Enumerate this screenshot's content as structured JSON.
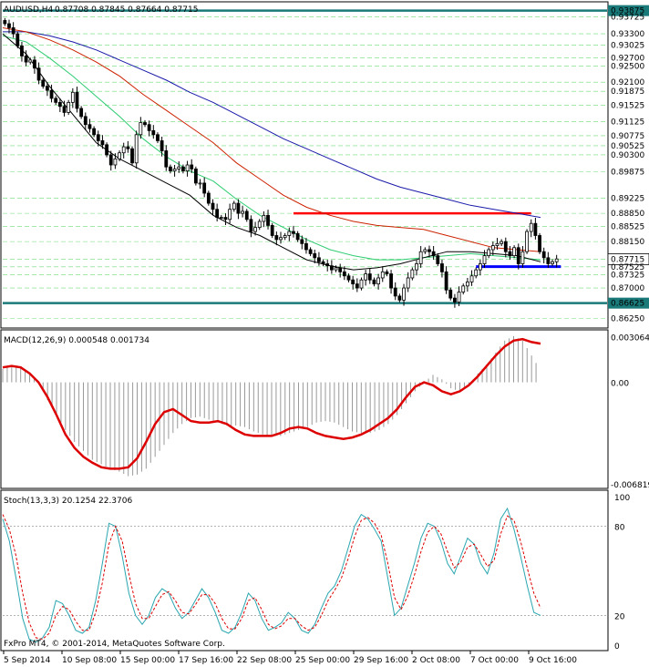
{
  "window": {
    "title": "AUDUSD,H4",
    "ohlc_text": "0.87708 0.87845 0.87664 0.87715",
    "watermark": "FxPro MT4, © 2001-2014, MetaQuotes Software Corp."
  },
  "colors": {
    "background": "#ffffff",
    "candle": "#000000",
    "grid": "#2ecc40",
    "ma_fast": "#000000",
    "ma_green": "#2ecc71",
    "ma_red": "#cc2200",
    "ma_blue": "#1a1aaa",
    "support_resistance": "#1a7a7a",
    "red_level": "#ff0000",
    "blue_level": "#0000ff",
    "macd_hist": "#999999",
    "macd_signal": "#dd0000",
    "stoch_main": "#2aa6b0",
    "stoch_signal": "#dd0000"
  },
  "chart_data": [
    {
      "type": "candlestick",
      "symbol": "AUDUSD",
      "timeframe": "H4",
      "ylim": [
        0.8603,
        0.9407
      ],
      "price_labels": [
        "0.93875",
        "0.93725",
        "0.93300",
        "0.93025",
        "0.92700",
        "0.92500",
        "0.92100",
        "0.91875",
        "0.91525",
        "0.91125",
        "0.90775",
        "0.90525",
        "0.90300",
        "0.89875",
        "0.89225",
        "0.88850",
        "0.88525",
        "0.88150",
        "0.87715",
        "0.87525",
        "0.87325",
        "0.87000",
        "0.86625",
        "0.86250"
      ],
      "current_price": "0.87715",
      "horizontal_levels": [
        {
          "price": 0.93875,
          "style": "teal"
        },
        {
          "price": 0.86625,
          "style": "teal"
        },
        {
          "price": 0.8885,
          "style": "red",
          "from_index": 68,
          "to_index": 124
        },
        {
          "price": 0.8753,
          "style": "blue",
          "from_index": 111,
          "to_index": 131
        }
      ],
      "x_labels": [
        "5 Sep 2014",
        "10 Sep 08:00",
        "15 Sep 00:00",
        "17 Sep 16:00",
        "22 Sep 08:00",
        "25 Sep 00:00",
        "29 Sep 16:00",
        "2 Oct 08:00",
        "7 Oct 00:00",
        "9 Oct 16:00"
      ],
      "close": [
        0.9355,
        0.9345,
        0.933,
        0.93,
        0.9275,
        0.926,
        0.9265,
        0.9245,
        0.9215,
        0.92,
        0.919,
        0.917,
        0.916,
        0.915,
        0.9135,
        0.916,
        0.9185,
        0.9145,
        0.9125,
        0.9105,
        0.9095,
        0.908,
        0.9065,
        0.9055,
        0.903,
        0.9005,
        0.902,
        0.9035,
        0.905,
        0.9045,
        0.901,
        0.908,
        0.911,
        0.9105,
        0.909,
        0.908,
        0.9065,
        0.904,
        0.9,
        0.899,
        0.8995,
        0.9,
        0.899,
        0.9005,
        0.8995,
        0.896,
        0.896,
        0.8935,
        0.891,
        0.8895,
        0.8875,
        0.8875,
        0.887,
        0.8895,
        0.891,
        0.8885,
        0.889,
        0.887,
        0.884,
        0.885,
        0.8865,
        0.888,
        0.8855,
        0.883,
        0.882,
        0.8825,
        0.883,
        0.884,
        0.8835,
        0.882,
        0.881,
        0.8795,
        0.8785,
        0.8775,
        0.8765,
        0.876,
        0.8755,
        0.8745,
        0.875,
        0.874,
        0.873,
        0.872,
        0.871,
        0.87,
        0.872,
        0.8735,
        0.872,
        0.871,
        0.8725,
        0.874,
        0.8735,
        0.87,
        0.868,
        0.867,
        0.87,
        0.8725,
        0.8745,
        0.876,
        0.879,
        0.8795,
        0.879,
        0.878,
        0.876,
        0.874,
        0.8695,
        0.8675,
        0.8665,
        0.869,
        0.8705,
        0.8715,
        0.873,
        0.8745,
        0.876,
        0.878,
        0.8795,
        0.8805,
        0.881,
        0.8815,
        0.879,
        0.878,
        0.88,
        0.876,
        0.879,
        0.884,
        0.886,
        0.883,
        0.879,
        0.8775,
        0.876,
        0.8765,
        0.8772
      ],
      "ma_fast": {
        "start": 0,
        "values": [
          0.933,
          0.928,
          0.92,
          0.913,
          0.906,
          0.902,
          0.899,
          0.896,
          0.893,
          0.888,
          0.885,
          0.883,
          0.88,
          0.877,
          0.8755,
          0.8745,
          0.875,
          0.876,
          0.8775,
          0.879,
          0.879,
          0.8785,
          0.878,
          0.8765
        ]
      },
      "ma_green": {
        "start": 0,
        "values": [
          0.9325,
          0.931,
          0.927,
          0.9225,
          0.9175,
          0.9125,
          0.907,
          0.9025,
          0.899,
          0.8965,
          0.892,
          0.888,
          0.885,
          0.882,
          0.8795,
          0.878,
          0.877,
          0.877,
          0.8775,
          0.878,
          0.8785,
          0.878,
          0.8775,
          0.877
        ]
      },
      "ma_red": {
        "start": 0,
        "values": [
          0.9345,
          0.9335,
          0.9315,
          0.929,
          0.926,
          0.9225,
          0.918,
          0.914,
          0.91,
          0.906,
          0.901,
          0.897,
          0.893,
          0.89,
          0.888,
          0.8865,
          0.8855,
          0.885,
          0.8845,
          0.883,
          0.8815,
          0.88,
          0.8795,
          0.879
        ]
      },
      "ma_blue": {
        "start": 0,
        "values": [
          0.9335,
          0.9335,
          0.9325,
          0.931,
          0.929,
          0.9265,
          0.924,
          0.9215,
          0.9185,
          0.916,
          0.913,
          0.91,
          0.907,
          0.9045,
          0.902,
          0.8995,
          0.897,
          0.895,
          0.8935,
          0.892,
          0.8905,
          0.8895,
          0.8885,
          0.8875
        ]
      }
    },
    {
      "type": "macd",
      "title": "MACD(12,26,9) 0.000548 0.001734",
      "ylim": [
        -0.007,
        0.0034
      ],
      "y_labels": [
        "0.003064",
        "0.00",
        "-0.006819"
      ],
      "histogram": [
        0.0009,
        0.0011,
        0.001,
        0.0006,
        0.0,
        -0.0012,
        -0.0022,
        -0.0032,
        -0.004,
        -0.0046,
        -0.0052,
        -0.0055,
        -0.0058,
        -0.006,
        -0.0063,
        -0.0062,
        -0.0058,
        -0.005,
        -0.0042,
        -0.0034,
        -0.0028,
        -0.0024,
        -0.0023,
        -0.0025,
        -0.0027,
        -0.0029,
        -0.0029,
        -0.003,
        -0.0033,
        -0.0035,
        -0.0036,
        -0.0036,
        -0.0034,
        -0.0032,
        -0.003,
        -0.0027,
        -0.0026,
        -0.0027,
        -0.003,
        -0.0033,
        -0.0034,
        -0.0034,
        -0.0032,
        -0.0028,
        -0.0022,
        -0.0014,
        -0.0006,
        -0.0,
        0.0005,
        0.0002,
        -0.0004,
        -0.0006,
        -0.0002,
        0.0006,
        0.0012,
        0.002,
        0.0028,
        0.0031,
        0.0028,
        0.0018,
        0.0008
      ],
      "signal": [
        0.001,
        0.0011,
        0.001,
        0.0006,
        0.0,
        -0.001,
        -0.0022,
        -0.0035,
        -0.0044,
        -0.005,
        -0.0054,
        -0.0057,
        -0.0058,
        -0.0058,
        -0.0057,
        -0.0051,
        -0.004,
        -0.0028,
        -0.002,
        -0.0018,
        -0.0022,
        -0.0026,
        -0.0027,
        -0.0027,
        -0.0026,
        -0.0028,
        -0.0032,
        -0.0035,
        -0.0036,
        -0.0036,
        -0.0036,
        -0.0034,
        -0.0031,
        -0.003,
        -0.0031,
        -0.0034,
        -0.0036,
        -0.0037,
        -0.0038,
        -0.0037,
        -0.0035,
        -0.0032,
        -0.0028,
        -0.0024,
        -0.0018,
        -0.001,
        -0.0003,
        0.0,
        -0.0002,
        -0.0006,
        -0.0008,
        -0.0006,
        -0.0002,
        0.0004,
        0.0011,
        0.0018,
        0.0024,
        0.0028,
        0.0029,
        0.0027,
        0.0026
      ]
    },
    {
      "type": "stochastic",
      "title": "Stoch(13,3,3) 20.1254 22.3706",
      "ylim": [
        0,
        100
      ],
      "y_labels": [
        "100",
        "80",
        "20",
        "0"
      ],
      "main": [
        85,
        70,
        45,
        18,
        4,
        2,
        5,
        12,
        30,
        28,
        20,
        10,
        8,
        12,
        30,
        55,
        82,
        80,
        60,
        35,
        20,
        14,
        20,
        32,
        38,
        35,
        25,
        18,
        22,
        30,
        38,
        32,
        22,
        10,
        8,
        12,
        22,
        35,
        30,
        18,
        10,
        12,
        15,
        22,
        18,
        10,
        8,
        14,
        25,
        35,
        40,
        50,
        65,
        80,
        88,
        85,
        78,
        70,
        45,
        20,
        25,
        40,
        55,
        72,
        82,
        80,
        70,
        55,
        48,
        60,
        72,
        68,
        55,
        48,
        62,
        85,
        92,
        78,
        60,
        40,
        22,
        20
      ],
      "signal": [
        88,
        78,
        60,
        35,
        15,
        5,
        4,
        8,
        20,
        26,
        24,
        16,
        10,
        10,
        22,
        42,
        68,
        80,
        70,
        48,
        28,
        18,
        18,
        26,
        34,
        36,
        30,
        22,
        21,
        27,
        34,
        34,
        28,
        18,
        11,
        11,
        18,
        30,
        32,
        24,
        14,
        11,
        13,
        18,
        18,
        13,
        10,
        12,
        20,
        30,
        37,
        45,
        58,
        73,
        84,
        86,
        82,
        74,
        55,
        32,
        24,
        33,
        47,
        63,
        76,
        80,
        75,
        63,
        52,
        56,
        66,
        68,
        61,
        53,
        57,
        75,
        87,
        84,
        70,
        52,
        35,
        25
      ]
    }
  ]
}
